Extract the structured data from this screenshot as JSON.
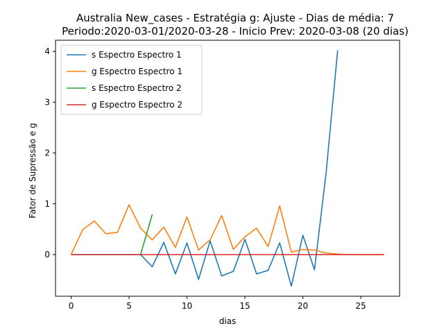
{
  "chart_data": {
    "type": "line",
    "title": "Australia New_cases - Estratégia g: Ajuste - Dias de média: 7",
    "subtitle": "Periodo:2020-03-01/2020-03-28 - Inicio Prev: 2020-03-08 (20 dias)",
    "xlabel": "dias",
    "ylabel": "Fator de Supressão e g",
    "xlim": [
      -1.35,
      28.35
    ],
    "ylim": [
      -0.82,
      4.22
    ],
    "xticks": [
      0,
      5,
      10,
      15,
      20,
      25
    ],
    "yticks": [
      0,
      1,
      2,
      3,
      4
    ],
    "legend_position": "top-left",
    "grid": false,
    "series": [
      {
        "name": "s Espectro Espectro 1",
        "color": "#1f77b4",
        "x": [
          0,
          1,
          2,
          3,
          4,
          5,
          6,
          7,
          8,
          9,
          10,
          11,
          12,
          13,
          14,
          15,
          16,
          17,
          18,
          19,
          20,
          21,
          22,
          23
        ],
        "y": [
          0,
          0,
          0,
          0,
          0,
          0,
          0,
          -0.24,
          0.24,
          -0.38,
          0.23,
          -0.49,
          0.27,
          -0.42,
          -0.33,
          0.3,
          -0.38,
          -0.31,
          0.23,
          -0.62,
          0.38,
          -0.3,
          1.6,
          4.02
        ]
      },
      {
        "name": "g Espectro Espectro 1",
        "color": "#ff7f0e",
        "x": [
          0,
          1,
          2,
          3,
          4,
          5,
          6,
          7,
          8,
          9,
          10,
          11,
          12,
          13,
          14,
          15,
          16,
          17,
          18,
          19,
          20,
          21,
          22,
          23,
          24,
          25,
          26,
          27
        ],
        "y": [
          0,
          0.49,
          0.66,
          0.41,
          0.44,
          0.98,
          0.52,
          0.29,
          0.54,
          0.14,
          0.74,
          0.09,
          0.29,
          0.77,
          0.1,
          0.35,
          0.52,
          0.16,
          0.96,
          0.05,
          0.1,
          0.09,
          0.03,
          0.01,
          0,
          0,
          0,
          0
        ]
      },
      {
        "name": "s Espectro Espectro 2",
        "color": "#2ca02c",
        "x": [
          6,
          7
        ],
        "y": [
          0,
          0.79
        ]
      },
      {
        "name": "g Espectro Espectro 2",
        "color": "#d62728",
        "x": [
          0,
          1,
          2,
          3,
          4,
          5,
          6,
          7,
          8,
          9,
          10,
          11,
          12,
          13,
          14,
          15,
          16,
          17,
          18,
          19,
          20,
          21,
          22,
          23,
          24,
          25,
          26,
          27
        ],
        "y": [
          0,
          0,
          0,
          0,
          0,
          0,
          0,
          0,
          0,
          0,
          0,
          0,
          0,
          0,
          0,
          0,
          0,
          0,
          0,
          0,
          0,
          0,
          0,
          0,
          0,
          0,
          0,
          0
        ]
      }
    ]
  }
}
